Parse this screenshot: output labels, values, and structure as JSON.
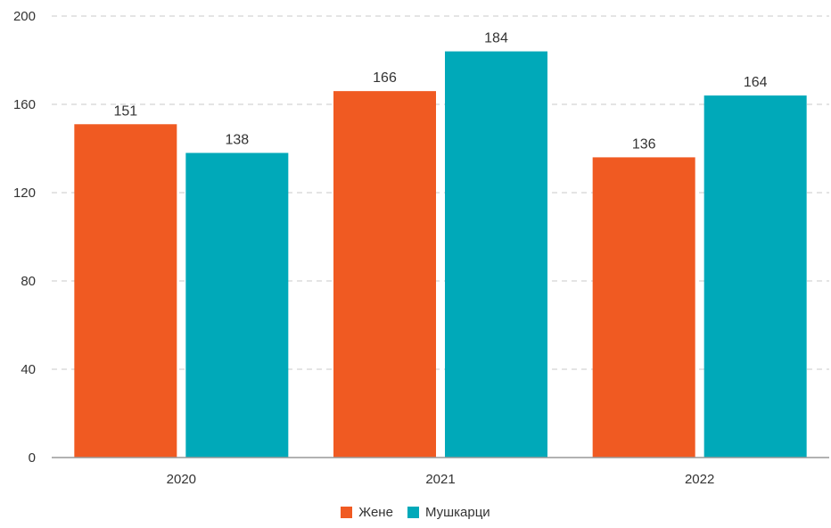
{
  "chart_data": {
    "type": "bar",
    "categories": [
      "2020",
      "2021",
      "2022"
    ],
    "series": [
      {
        "name": "Жене",
        "values": [
          151,
          166,
          136
        ],
        "color": "#f05a22"
      },
      {
        "name": "Мушкарци",
        "values": [
          138,
          184,
          164
        ],
        "color": "#00a9b9"
      }
    ],
    "yticks": [
      0,
      40,
      80,
      120,
      160,
      200
    ],
    "ylim": [
      0,
      200
    ],
    "grid": true,
    "legend_position": "bottom"
  }
}
